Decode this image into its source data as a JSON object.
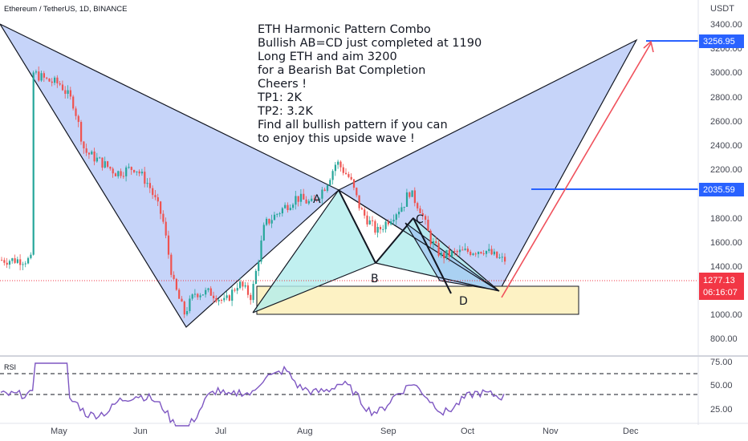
{
  "header": {
    "symbol": "Ethereum / TetherUS, 1D, BINANCE",
    "currency": "USDT"
  },
  "price_axis": {
    "ticks": [
      "3400.00",
      "3200.00",
      "3000.00",
      "2800.00",
      "2600.00",
      "2400.00",
      "2200.00",
      "1800.00",
      "1600.00",
      "1400.00",
      "1000.00",
      "800.00"
    ],
    "current_price": "1277.13",
    "countdown": "06:16:07",
    "line_labels": [
      "3256.95",
      "2035.59"
    ]
  },
  "rsi": {
    "label": "RSI",
    "ticks": [
      "75.00",
      "50.00",
      "25.00"
    ]
  },
  "time_axis": [
    "May",
    "Jun",
    "Jul",
    "Aug",
    "Sep",
    "Oct",
    "Nov",
    "Dec"
  ],
  "annotation": {
    "lines": [
      "ETH Harmonic Pattern Combo",
      "Bullish AB=CD just completed at 1190",
      "Long ETH and aim 3200",
      "for a Bearish Bat Completion",
      "Cheers !",
      "TP1: 2K",
      "TP2: 3.2K",
      "Find all bullish pattern if you can",
      "to enjoy this upside wave !"
    ]
  },
  "pattern_points": [
    "A",
    "B",
    "C",
    "D"
  ],
  "colors": {
    "bat_fill": "#b3c6f7",
    "abcd_fill": "#b2ecec",
    "support_zone": "#fdf2c4",
    "target_line": "#2962ff",
    "arrow": "#f0515c",
    "candle_up": "#26a69a",
    "candle_down": "#ef5350",
    "rsi_line": "#7e57c2",
    "current_tag": "#f23645"
  },
  "chart_data": {
    "type": "candlestick",
    "title": "Ethereum / TetherUS, 1D, BINANCE",
    "ylabel": "USDT",
    "x_labels": [
      "May",
      "Jun",
      "Jul",
      "Aug",
      "Sep",
      "Oct",
      "Nov",
      "Dec"
    ],
    "y_scale": "log",
    "ylim": [
      700,
      3500
    ],
    "price_path": [
      [
        "Apr 23",
        3000
      ],
      [
        "Apr 28",
        2900
      ],
      [
        "May 3",
        2850
      ],
      [
        "May 8",
        2600
      ],
      [
        "May 12",
        2100
      ],
      [
        "May 18",
        2000
      ],
      [
        "May 24",
        1900
      ],
      [
        "May 31",
        1950
      ],
      [
        "Jun 5",
        1800
      ],
      [
        "Jun 10",
        1550
      ],
      [
        "Jun 14",
        1150
      ],
      [
        "Jun 18",
        1000
      ],
      [
        "Jun 22",
        1100
      ],
      [
        "Jun 28",
        1100
      ],
      [
        "Jul 3",
        1050
      ],
      [
        "Jul 8",
        1150
      ],
      [
        "Jul 13",
        1080
      ],
      [
        "Jul 18",
        1500
      ],
      [
        "Jul 24",
        1600
      ],
      [
        "Jul 30",
        1700
      ],
      [
        "Aug 5",
        1650
      ],
      [
        "Aug 10",
        1800
      ],
      [
        "Aug 14",
        2000
      ],
      [
        "Aug 19",
        1850
      ],
      [
        "Aug 23",
        1600
      ],
      [
        "Aug 29",
        1450
      ],
      [
        "Sep 3",
        1550
      ],
      [
        "Sep 8",
        1650
      ],
      [
        "Sep 10",
        1750
      ],
      [
        "Sep 14",
        1620
      ],
      [
        "Sep 18",
        1400
      ],
      [
        "Sep 22",
        1300
      ],
      [
        "Sep 28",
        1320
      ],
      [
        "Oct 3",
        1330
      ],
      [
        "Oct 8",
        1340
      ],
      [
        "Oct 13",
        1290
      ],
      [
        "Oct 15",
        1277
      ]
    ],
    "levels": {
      "current": 1277.13,
      "target_1": 2035.59,
      "target_2": 3256.95
    },
    "harmonic_points": {
      "A": 2000,
      "B": 1450,
      "C": 1750,
      "D": 1190
    },
    "rsi": {
      "levels": [
        70,
        50,
        30
      ]
    }
  }
}
